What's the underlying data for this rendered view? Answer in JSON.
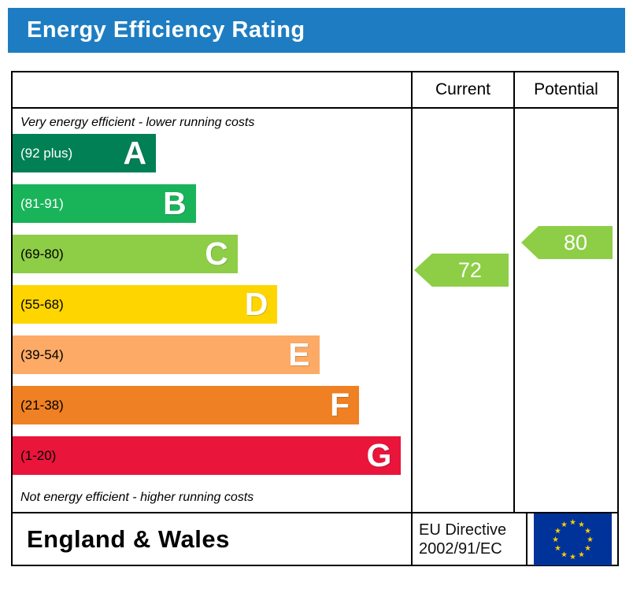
{
  "title": "Energy Efficiency Rating",
  "table": {
    "current_header": "Current",
    "potential_header": "Potential"
  },
  "chart_data": {
    "type": "bar",
    "subtype": "epc-energy-efficiency-rating",
    "title": "Energy Efficiency Rating",
    "top_note": "Very energy efficient - lower running costs",
    "bottom_note": "Not energy efficient - higher running costs",
    "bands": [
      {
        "letter": "A",
        "range_label": "(92 plus)",
        "min": 92,
        "max": 100,
        "color": "#008054",
        "width_pct": 36,
        "label_color": "#ffffff"
      },
      {
        "letter": "B",
        "range_label": "(81-91)",
        "min": 81,
        "max": 91,
        "color": "#19b459",
        "width_pct": 46,
        "label_color": "#ffffff"
      },
      {
        "letter": "C",
        "range_label": "(69-80)",
        "min": 69,
        "max": 80,
        "color": "#8dce46",
        "width_pct": 56.5,
        "label_color": "#000000"
      },
      {
        "letter": "D",
        "range_label": "(55-68)",
        "min": 55,
        "max": 68,
        "color": "#ffd500",
        "width_pct": 66.5,
        "label_color": "#000000"
      },
      {
        "letter": "E",
        "range_label": "(39-54)",
        "min": 39,
        "max": 54,
        "color": "#fcaa65",
        "width_pct": 77,
        "label_color": "#000000"
      },
      {
        "letter": "F",
        "range_label": "(21-38)",
        "min": 21,
        "max": 38,
        "color": "#ef8023",
        "width_pct": 87,
        "label_color": "#000000"
      },
      {
        "letter": "G",
        "range_label": "(1-20)",
        "min": 1,
        "max": 20,
        "color": "#e9153b",
        "width_pct": 97.5,
        "label_color": "#000000"
      }
    ],
    "current": {
      "value": 72,
      "band": "C",
      "color": "#8dce46"
    },
    "potential": {
      "value": 80,
      "band": "C",
      "color": "#8dce46"
    }
  },
  "footer": {
    "region": "England & Wales",
    "directive_line1": "EU Directive",
    "directive_line2": "2002/91/EC"
  },
  "icons": {
    "eu_flag": "eu-flag-icon"
  },
  "colors": {
    "title_bg": "#1e7dc2",
    "title_text": "#ffffff",
    "border": "#000000",
    "eu_flag_blue": "#003399",
    "eu_flag_star": "#ffcc00"
  }
}
